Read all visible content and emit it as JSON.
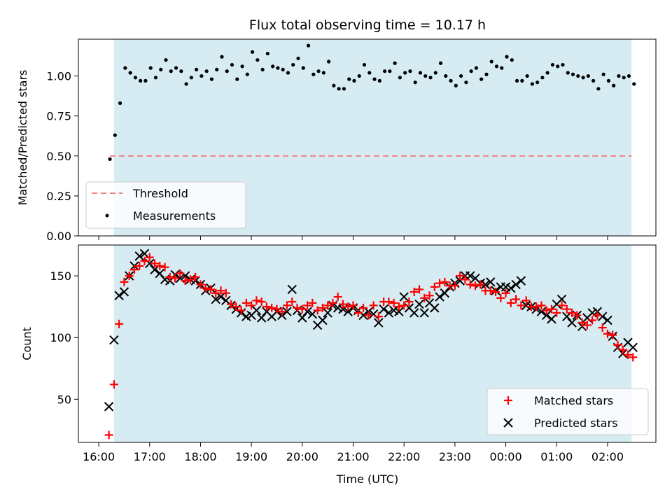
{
  "chart_data": {
    "title": "Flux total observing time = 10.17 h",
    "xlabel": "Time (UTC)",
    "x_ticks": [
      "16:00",
      "17:00",
      "18:00",
      "19:00",
      "20:00",
      "21:00",
      "22:00",
      "23:00",
      "00:00",
      "01:00",
      "02:00"
    ],
    "x_range_hours": [
      15.6,
      26.95
    ],
    "observing_window_hours": [
      16.3,
      26.47
    ],
    "colors": {
      "window": "#add8e6",
      "threshold": "#f08080",
      "matched": "#ff0000",
      "predicted": "#000000",
      "measurement": "#000000"
    },
    "panels": [
      {
        "type": "scatter",
        "ylabel": "Matched/Predicted stars",
        "ylim": [
          0,
          1.23
        ],
        "y_ticks": [
          "0.00",
          "0.25",
          "0.50",
          "0.75",
          "1.00"
        ],
        "threshold": 0.5,
        "legend": {
          "position": "lower-left",
          "entries": [
            "Threshold",
            "Measurements"
          ]
        }
      },
      {
        "type": "scatter",
        "ylabel": "Count",
        "ylim": [
          15,
          175
        ],
        "y_ticks": [
          "50",
          "100",
          "150"
        ],
        "legend": {
          "position": "lower-right",
          "entries": [
            "Matched stars",
            "Predicted stars"
          ]
        }
      }
    ],
    "series": {
      "ratio_x": [
        16.22,
        16.32,
        16.42,
        16.52,
        16.62,
        16.72,
        16.82,
        16.92,
        17.02,
        17.12,
        17.22,
        17.32,
        17.42,
        17.52,
        17.62,
        17.72,
        17.82,
        17.92,
        18.02,
        18.12,
        18.22,
        18.32,
        18.42,
        18.52,
        18.62,
        18.72,
        18.82,
        18.92,
        19.02,
        19.12,
        19.22,
        19.32,
        19.42,
        19.52,
        19.62,
        19.72,
        19.82,
        19.92,
        20.02,
        20.12,
        20.22,
        20.32,
        20.42,
        20.52,
        20.62,
        20.72,
        20.82,
        20.92,
        21.02,
        21.12,
        21.22,
        21.32,
        21.42,
        21.52,
        21.62,
        21.72,
        21.82,
        21.92,
        22.02,
        22.12,
        22.22,
        22.32,
        22.42,
        22.52,
        22.62,
        22.72,
        22.82,
        22.92,
        23.02,
        23.12,
        23.22,
        23.32,
        23.42,
        23.52,
        23.62,
        23.72,
        23.82,
        23.92,
        24.02,
        24.12,
        24.22,
        24.32,
        24.42,
        24.52,
        24.62,
        24.72,
        24.82,
        24.92,
        25.02,
        25.12,
        25.22,
        25.32,
        25.42,
        25.52,
        25.62,
        25.72,
        25.82,
        25.92,
        26.02,
        26.12,
        26.22,
        26.32,
        26.42,
        26.52
      ],
      "ratio_y": [
        0.48,
        0.63,
        0.83,
        1.05,
        1.02,
        0.99,
        0.97,
        0.97,
        1.05,
        0.99,
        1.04,
        1.1,
        1.03,
        1.05,
        1.03,
        0.95,
        0.99,
        1.04,
        1.0,
        1.03,
        0.98,
        1.04,
        1.12,
        1.03,
        1.07,
        0.98,
        1.06,
        1.01,
        1.15,
        1.1,
        1.04,
        1.14,
        1.06,
        1.05,
        1.04,
        1.02,
        1.07,
        1.11,
        1.05,
        1.19,
        1.01,
        1.03,
        1.02,
        1.09,
        0.94,
        0.92,
        0.92,
        0.98,
        0.97,
        1.0,
        1.07,
        1.02,
        0.98,
        0.97,
        1.03,
        1.03,
        1.08,
        0.99,
        1.02,
        1.03,
        0.96,
        1.02,
        1.0,
        0.99,
        1.02,
        1.08,
        1.0,
        0.97,
        0.94,
        1.0,
        0.96,
        1.03,
        1.05,
        0.98,
        1.01,
        1.09,
        1.06,
        1.05,
        1.12,
        1.1,
        0.97,
        0.97,
        1.0,
        0.95,
        0.96,
        0.99,
        1.02,
        1.07,
        1.06,
        1.07,
        1.02,
        1.01,
        1.0,
        0.99,
        1.0,
        0.97,
        0.92,
        1.01,
        0.97,
        0.94,
        1.0,
        0.99,
        1.0,
        0.95
      ],
      "matched_x": [
        16.2,
        16.3,
        16.4,
        16.5,
        16.6,
        16.7,
        16.8,
        16.9,
        17.0,
        17.1,
        17.2,
        17.3,
        17.4,
        17.5,
        17.6,
        17.7,
        17.8,
        17.9,
        18.0,
        18.1,
        18.2,
        18.3,
        18.4,
        18.5,
        18.6,
        18.7,
        18.8,
        18.9,
        19.0,
        19.1,
        19.2,
        19.3,
        19.4,
        19.5,
        19.6,
        19.7,
        19.8,
        19.9,
        20.0,
        20.1,
        20.2,
        20.3,
        20.4,
        20.5,
        20.6,
        20.7,
        20.8,
        20.9,
        21.0,
        21.1,
        21.2,
        21.3,
        21.4,
        21.5,
        21.6,
        21.7,
        21.8,
        21.9,
        22.0,
        22.1,
        22.2,
        22.3,
        22.4,
        22.5,
        22.6,
        22.7,
        22.8,
        22.9,
        23.0,
        23.1,
        23.2,
        23.3,
        23.4,
        23.5,
        23.6,
        23.7,
        23.8,
        23.9,
        24.0,
        24.1,
        24.2,
        24.3,
        24.4,
        24.5,
        24.6,
        24.7,
        24.8,
        24.9,
        25.0,
        25.1,
        25.2,
        25.3,
        25.4,
        25.5,
        25.6,
        25.7,
        25.8,
        25.9,
        26.0,
        26.1,
        26.2,
        26.3,
        26.4,
        26.5
      ],
      "matched_y": [
        21,
        62,
        111,
        145,
        150,
        155,
        158,
        162,
        165,
        160,
        158,
        157,
        149,
        148,
        152,
        146,
        147,
        149,
        143,
        140,
        139,
        136,
        138,
        136,
        127,
        125,
        122,
        128,
        126,
        130,
        129,
        125,
        124,
        123,
        121,
        126,
        129,
        124,
        123,
        126,
        128,
        122,
        124,
        126,
        128,
        133,
        127,
        125,
        126,
        120,
        124,
        118,
        126,
        117,
        129,
        129,
        128,
        125,
        126,
        129,
        137,
        139,
        132,
        134,
        141,
        144,
        145,
        142,
        142,
        150,
        147,
        143,
        142,
        143,
        138,
        138,
        137,
        132,
        136,
        128,
        131,
        126,
        130,
        125,
        125,
        126,
        122,
        123,
        120,
        126,
        123,
        120,
        118,
        112,
        110,
        114,
        118,
        108,
        103,
        102,
        94,
        90,
        86,
        84
      ],
      "predicted_x": [
        16.2,
        16.3,
        16.4,
        16.5,
        16.6,
        16.7,
        16.8,
        16.9,
        17.0,
        17.1,
        17.2,
        17.3,
        17.4,
        17.5,
        17.6,
        17.7,
        17.8,
        17.9,
        18.0,
        18.1,
        18.2,
        18.3,
        18.4,
        18.5,
        18.6,
        18.7,
        18.8,
        18.9,
        19.0,
        19.1,
        19.2,
        19.3,
        19.4,
        19.5,
        19.6,
        19.7,
        19.8,
        19.9,
        20.0,
        20.1,
        20.2,
        20.3,
        20.4,
        20.5,
        20.6,
        20.7,
        20.8,
        20.9,
        21.0,
        21.1,
        21.2,
        21.3,
        21.4,
        21.5,
        21.6,
        21.7,
        21.8,
        21.9,
        22.0,
        22.1,
        22.2,
        22.3,
        22.4,
        22.5,
        22.6,
        22.7,
        22.8,
        22.9,
        23.0,
        23.1,
        23.2,
        23.3,
        23.4,
        23.5,
        23.6,
        23.7,
        23.8,
        23.9,
        24.0,
        24.1,
        24.2,
        24.3,
        24.4,
        24.5,
        24.6,
        24.7,
        24.8,
        24.9,
        25.0,
        25.1,
        25.2,
        25.3,
        25.4,
        25.5,
        25.6,
        25.7,
        25.8,
        25.9,
        26.0,
        26.1,
        26.2,
        26.3,
        26.4,
        26.5
      ],
      "predicted_y": [
        44,
        98,
        134,
        137,
        150,
        158,
        166,
        168,
        160,
        155,
        152,
        147,
        146,
        151,
        148,
        150,
        147,
        146,
        143,
        138,
        140,
        131,
        133,
        130,
        126,
        123,
        120,
        117,
        118,
        122,
        116,
        121,
        117,
        121,
        118,
        121,
        139,
        122,
        116,
        121,
        119,
        110,
        114,
        120,
        126,
        124,
        123,
        121,
        124,
        122,
        118,
        121,
        119,
        112,
        123,
        120,
        122,
        121,
        133,
        124,
        120,
        127,
        120,
        128,
        124,
        133,
        136,
        141,
        144,
        146,
        150,
        150,
        148,
        144,
        143,
        145,
        138,
        141,
        141,
        140,
        143,
        146,
        126,
        125,
        123,
        121,
        118,
        115,
        127,
        131,
        117,
        112,
        118,
        109,
        116,
        120,
        121,
        117,
        114,
        101,
        92,
        87,
        96,
        92
      ]
    }
  }
}
